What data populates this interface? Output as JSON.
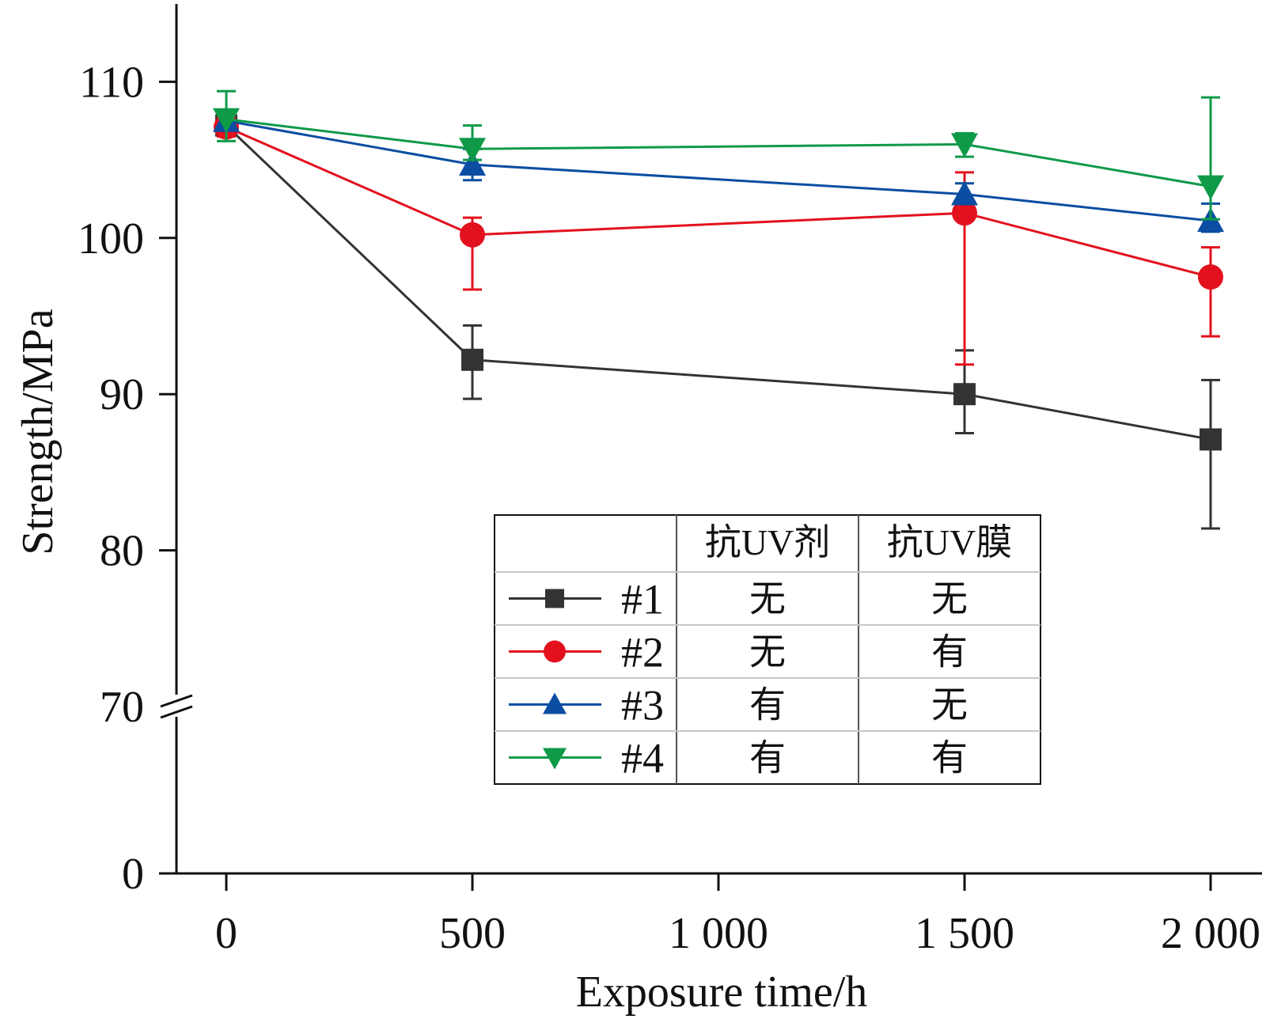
{
  "chart_data": {
    "type": "line",
    "xlabel": "Exposure time/h",
    "ylabel": "Strength/MPa",
    "x": [
      0,
      500,
      1500,
      2000
    ],
    "x_ticks": [
      0,
      500,
      1000,
      1500,
      2000
    ],
    "x_tick_labels": [
      "0",
      "500",
      "1 000",
      "1 500",
      "2 000"
    ],
    "xlim": [
      -100,
      2100
    ],
    "ylim": [
      0,
      115
    ],
    "y_axis_break": [
      0,
      70
    ],
    "y_ticks": [
      0,
      70,
      80,
      90,
      100,
      110
    ],
    "y_tick_labels": [
      "0",
      "70",
      "80",
      "90",
      "100",
      "110"
    ],
    "grid": false,
    "legend_placement": "bottom-center",
    "series": [
      {
        "name": "#1",
        "color": "#333333",
        "marker": "square",
        "values": [
          107.2,
          92.2,
          90.0,
          87.1
        ],
        "err_low": [
          106.6,
          89.7,
          87.5,
          81.4
        ],
        "err_high": [
          107.8,
          94.4,
          92.8,
          90.9
        ]
      },
      {
        "name": "#2",
        "color": "#e3101e",
        "marker": "circle",
        "values": [
          107.1,
          100.2,
          101.6,
          97.5
        ],
        "err_low": [
          106.5,
          96.7,
          91.9,
          93.7
        ],
        "err_high": [
          107.7,
          101.3,
          104.2,
          99.4
        ]
      },
      {
        "name": "#3",
        "color": "#0a4da2",
        "marker": "triangle-up",
        "values": [
          107.5,
          104.7,
          102.8,
          101.1
        ],
        "err_low": [
          107.0,
          103.7,
          102.2,
          100.4
        ],
        "err_high": [
          108.0,
          105.7,
          103.5,
          102.2
        ]
      },
      {
        "name": "#4",
        "color": "#0f9a48",
        "marker": "triangle-down",
        "values": [
          107.6,
          105.7,
          106.0,
          103.3
        ],
        "err_low": [
          106.2,
          105.0,
          105.2,
          101.2
        ],
        "err_high": [
          109.4,
          107.2,
          106.7,
          109.0
        ]
      }
    ],
    "legend_table": {
      "headers": [
        "抗UV剂",
        "抗UV膜"
      ],
      "rows": [
        {
          "series": "#1",
          "cells": [
            "无",
            "无"
          ]
        },
        {
          "series": "#2",
          "cells": [
            "无",
            "有"
          ]
        },
        {
          "series": "#3",
          "cells": [
            "有",
            "无"
          ]
        },
        {
          "series": "#4",
          "cells": [
            "有",
            "有"
          ]
        }
      ]
    }
  }
}
